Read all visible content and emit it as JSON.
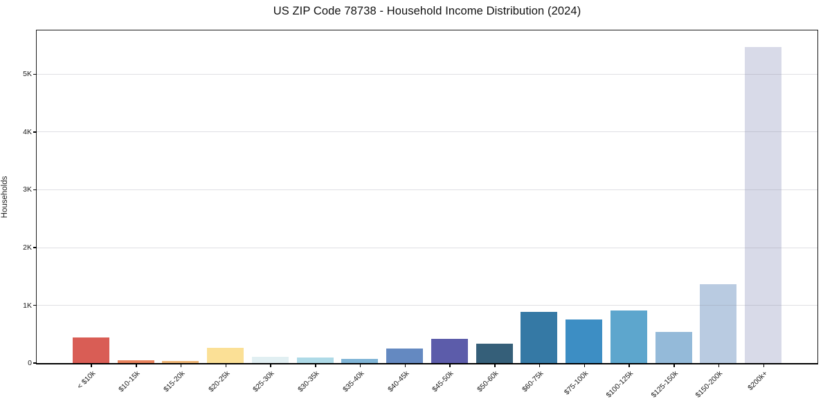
{
  "chart_data": {
    "type": "bar",
    "title": "US ZIP Code 78738 - Household Income Distribution (2024)",
    "xlabel": "",
    "ylabel": "Households",
    "categories": [
      "< $10k",
      "$10-15k",
      "$15-20k",
      "$20-25k",
      "$25-30k",
      "$30-35k",
      "$35-40k",
      "$40-45k",
      "$45-50k",
      "$50-60k",
      "$60-75k",
      "$75-100k",
      "$100-125k",
      "$125-150k",
      "$150-200k",
      "$200k+"
    ],
    "values": [
      445,
      52,
      38,
      265,
      112,
      91,
      76,
      255,
      415,
      330,
      885,
      750,
      915,
      535,
      1370,
      5470
    ],
    "bar_colors": [
      "#d95d55",
      "#e8825c",
      "#efb574",
      "#fbe096",
      "#e1eff2",
      "#aedae7",
      "#7fb4d6",
      "#6489c1",
      "#5c5caa",
      "#355f79",
      "#3579a5",
      "#3d8ec4",
      "#5da6cd",
      "#94bad9",
      "#b9cbe1",
      "#d8dae8"
    ],
    "ytick_labels": [
      "0",
      "1K",
      "2K",
      "3K",
      "4K",
      "5K"
    ],
    "ytick_values": [
      0,
      1000,
      2000,
      3000,
      4000,
      5000
    ],
    "ylim": [
      0,
      5760
    ],
    "grid": "horizontal",
    "gridline_color": "#e9e9ec",
    "background": "#ffffff",
    "legend": "none",
    "x_tick_rotation_deg": 45
  }
}
